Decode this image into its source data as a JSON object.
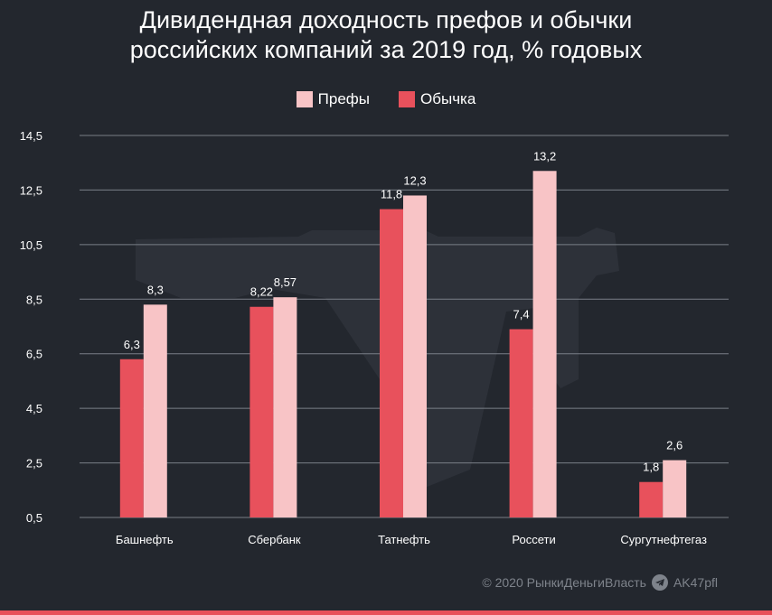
{
  "title_line1": "Дивидендная доходность префов и обычки",
  "title_line2": "российских компаний за 2019 год, % годовых",
  "footer": {
    "copyright": "© 2020 РынкиДеньгиВласть",
    "telegram": "AK47pfl"
  },
  "colors": {
    "background": "#23272e",
    "prefs": "#f8c4c6",
    "common": "#e8515c",
    "grid": "#7a7f87",
    "footer_bar": "#e84f5a"
  },
  "chart_data": {
    "type": "bar",
    "title": "Дивидендная доходность префов и обычки российских компаний за 2019 год, % годовых",
    "categories": [
      "Башнефть",
      "Сбербанк",
      "Татнефть",
      "Россети",
      "Сургутнефтегаз"
    ],
    "series": [
      {
        "name": "Обычка",
        "values": [
          6.3,
          8.22,
          11.8,
          7.4,
          1.8
        ],
        "labels": [
          "6,3",
          "8,22",
          "11,8",
          "7,4",
          "1,8"
        ],
        "color": "#e8515c"
      },
      {
        "name": "Префы",
        "values": [
          8.3,
          8.57,
          12.3,
          13.2,
          2.6
        ],
        "labels": [
          "8,3",
          "8,57",
          "12,3",
          "13,2",
          "2,6"
        ],
        "color": "#f8c4c6"
      }
    ],
    "legend_order": [
      "Префы",
      "Обычка"
    ],
    "ylim": [
      0.5,
      14.5
    ],
    "yticks": [
      0.5,
      2.5,
      4.5,
      6.5,
      8.5,
      10.5,
      12.5,
      14.5
    ],
    "ytick_labels": [
      "0,5",
      "2,5",
      "4,5",
      "6,5",
      "8,5",
      "10,5",
      "12,5",
      "14,5"
    ],
    "grid": true,
    "legend_position": "top-center"
  }
}
